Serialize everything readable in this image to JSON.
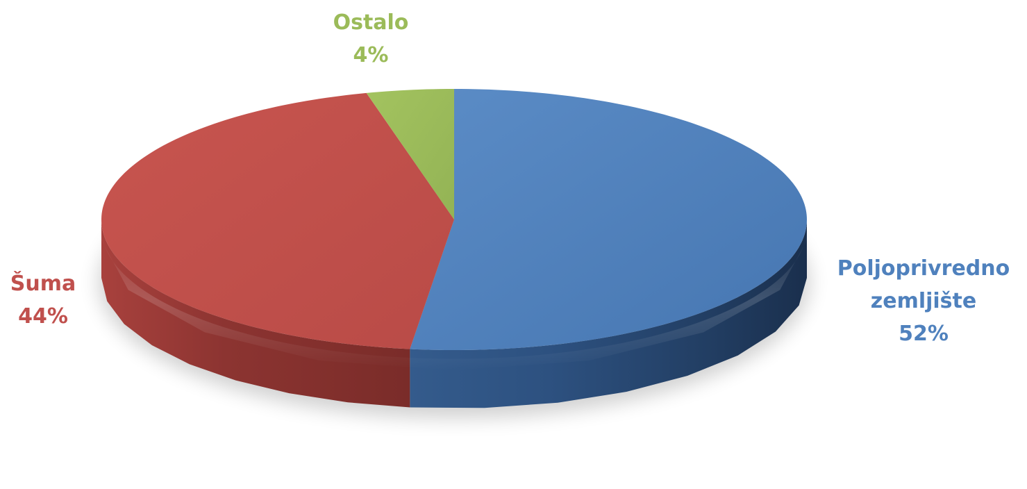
{
  "chart_data": {
    "type": "pie",
    "style": "3d",
    "title": "",
    "slices": [
      {
        "label_lines": [
          "Poljoprivredno",
          "zemljište"
        ],
        "percent_label": "52%",
        "value": 52,
        "color": "#4F81BD"
      },
      {
        "label_lines": [
          "Šuma"
        ],
        "percent_label": "44%",
        "value": 44,
        "color": "#C0504D"
      },
      {
        "label_lines": [
          "Ostalo"
        ],
        "percent_label": "4%",
        "value": 4,
        "color": "#9BBB59"
      }
    ]
  }
}
